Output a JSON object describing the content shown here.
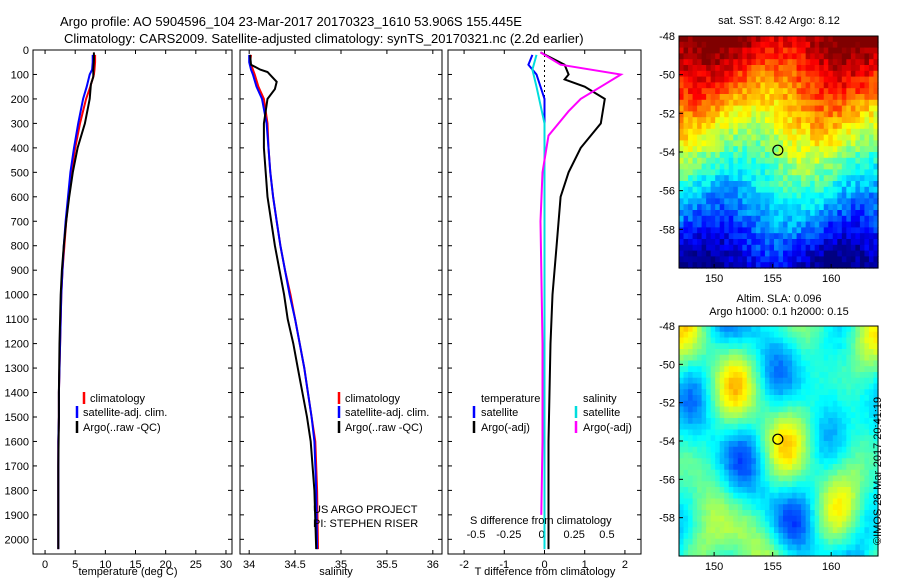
{
  "title_line1": "Argo profile: AO 5904596_104 23-Mar-2017 20170323_1610 53.906S 155.445E",
  "title_line2": "Climatology: CARS2009. Satellite-adjusted climatology: synTS_20170321.nc (2.2d earlier)",
  "sst_title": "sat. SST: 8.42 Argo: 8.12",
  "sla_title1": "Altim. SLA: 0.096",
  "sla_title2": "Argo h1000: 0.1 h2000: 0.15",
  "credit": "©IMOS 28-Mar-2017 20:41:19",
  "project_line1": "US ARGO PROJECT",
  "project_line2": "PI: STEPHEN RISER",
  "colors": {
    "climatology": "#ff0000",
    "satellite": "#0000ff",
    "argo": "#000000",
    "sat_salinity": "#00dddd",
    "argo_salinity": "#ff00ff"
  },
  "chart_data": [
    {
      "type": "line",
      "name": "temperature",
      "xlabel": "temperature (deg C)",
      "ylabel": "",
      "xlim": [
        -2,
        31
      ],
      "ylim": [
        2060,
        0
      ],
      "xticks": [
        0,
        5,
        10,
        15,
        20,
        25,
        30
      ],
      "yticks": [
        0,
        100,
        200,
        300,
        400,
        500,
        600,
        700,
        800,
        900,
        1000,
        1100,
        1200,
        1300,
        1400,
        1500,
        1600,
        1700,
        1800,
        1900,
        2000
      ],
      "legend": [
        "climatology",
        "satellite-adj. clim.",
        "Argo(..raw -QC)"
      ],
      "series": [
        {
          "name": "climatology",
          "color": "#ff0000",
          "x": [
            8.3,
            8.3,
            8.2,
            8.1,
            7.5,
            6.8,
            5.8,
            5.0,
            4.4,
            3.9,
            3.5,
            3.2,
            2.9,
            2.7,
            2.6,
            2.5,
            2.4,
            2.3,
            2.3,
            2.2,
            2.2,
            2.2
          ],
          "y": [
            20,
            50,
            80,
            100,
            150,
            200,
            300,
            400,
            500,
            600,
            700,
            800,
            900,
            1000,
            1100,
            1200,
            1300,
            1400,
            1500,
            1600,
            1800,
            2040
          ]
        },
        {
          "name": "satellite-adj. clim.",
          "color": "#0000ff",
          "x": [
            7.9,
            7.9,
            7.8,
            7.4,
            6.9,
            6.3,
            5.5,
            4.8,
            4.2,
            3.8,
            3.4,
            3.1,
            2.9,
            2.7,
            2.6,
            2.5,
            2.4,
            2.3,
            2.3,
            2.2,
            2.2,
            2.2
          ],
          "y": [
            20,
            50,
            80,
            100,
            150,
            200,
            300,
            400,
            500,
            600,
            700,
            800,
            900,
            1000,
            1100,
            1200,
            1300,
            1400,
            1500,
            1600,
            1800,
            2040
          ]
        },
        {
          "name": "Argo(..raw -QC)",
          "color": "#000000",
          "x": [
            8.1,
            8.1,
            8.0,
            8.0,
            7.6,
            7.4,
            6.6,
            5.4,
            4.6,
            4.0,
            3.5,
            3.1,
            2.8,
            2.6,
            2.5,
            2.4,
            2.3,
            2.3,
            2.2,
            2.2,
            2.2
          ],
          "y": [
            10,
            40,
            80,
            110,
            140,
            200,
            300,
            400,
            500,
            600,
            700,
            800,
            900,
            1000,
            1100,
            1200,
            1400,
            1500,
            1700,
            1900,
            2040
          ]
        }
      ]
    },
    {
      "type": "line",
      "name": "salinity",
      "xlabel": "salinity",
      "xlim": [
        33.9,
        36.1
      ],
      "xticks": [
        34,
        34.5,
        35,
        35.5,
        36
      ],
      "legend": [
        "climatology",
        "satellite-adj. clim.",
        "Argo(..raw -QC)"
      ],
      "series": [
        {
          "name": "climatology",
          "color": "#ff0000",
          "x": [
            34.02,
            34.01,
            34.04,
            34.06,
            34.1,
            34.16,
            34.2,
            34.21,
            34.23,
            34.26,
            34.3,
            34.34,
            34.39,
            34.45,
            34.5,
            34.55,
            34.6,
            34.64,
            34.68,
            34.72,
            34.74,
            34.75
          ],
          "y": [
            20,
            50,
            80,
            100,
            150,
            200,
            300,
            400,
            500,
            600,
            700,
            800,
            900,
            1000,
            1100,
            1200,
            1300,
            1400,
            1500,
            1600,
            1800,
            2040
          ]
        },
        {
          "name": "satellite-adj. clim.",
          "color": "#0000ff",
          "x": [
            34.0,
            34.0,
            34.02,
            34.04,
            34.08,
            34.14,
            34.19,
            34.21,
            34.23,
            34.26,
            34.3,
            34.34,
            34.39,
            34.44,
            34.5,
            34.55,
            34.6,
            34.64,
            34.68,
            34.71,
            34.73,
            34.74
          ],
          "y": [
            20,
            50,
            80,
            100,
            150,
            200,
            300,
            400,
            500,
            600,
            700,
            800,
            900,
            1000,
            1100,
            1200,
            1300,
            1400,
            1500,
            1600,
            1800,
            2040
          ]
        },
        {
          "name": "Argo(..raw -QC)",
          "color": "#000000",
          "x": [
            34.01,
            34.02,
            34.12,
            34.2,
            34.25,
            34.3,
            34.28,
            34.2,
            34.16,
            34.16,
            34.18,
            34.2,
            34.24,
            34.28,
            34.33,
            34.38,
            34.42,
            34.48,
            34.53,
            34.58,
            34.63,
            34.67,
            34.71,
            34.73
          ],
          "y": [
            20,
            60,
            80,
            90,
            110,
            130,
            160,
            200,
            300,
            400,
            500,
            600,
            700,
            800,
            900,
            1000,
            1100,
            1200,
            1300,
            1400,
            1500,
            1600,
            1800,
            2040
          ]
        }
      ]
    },
    {
      "type": "line",
      "name": "differences",
      "xlabel": "T difference from climatology",
      "xlabel_top": "S difference from climatology",
      "xlim": [
        -2.4,
        2.4
      ],
      "xticks": [
        -2,
        -1,
        0,
        1,
        2
      ],
      "top_ticks": [
        -0.5,
        -0.25,
        0,
        0.25,
        0.5
      ],
      "legend_titles": [
        "temperature",
        "salinity"
      ],
      "legend_temperature": [
        "satellite",
        "Argo(-adj)"
      ],
      "legend_salinity": [
        "satellite",
        "Argo(-adj)"
      ],
      "series": [
        {
          "name": "T satellite",
          "color": "#0000ff",
          "x": [
            -0.3,
            -0.4,
            -0.2,
            0.0,
            0.0,
            0.0,
            0.0
          ],
          "y": [
            20,
            60,
            100,
            200,
            500,
            1000,
            2040
          ]
        },
        {
          "name": "T Argo(-adj)",
          "color": "#000000",
          "x": [
            -0.1,
            0.5,
            0.6,
            0.5,
            1.0,
            1.5,
            1.4,
            0.9,
            0.6,
            0.4,
            0.3,
            0.2,
            0.15,
            0.1,
            0.1
          ],
          "y": [
            10,
            60,
            100,
            120,
            150,
            200,
            300,
            400,
            500,
            600,
            800,
            1000,
            1200,
            1600,
            2040
          ]
        },
        {
          "name": "S satellite",
          "color": "#00dddd",
          "x": [
            -0.2,
            -0.3,
            -0.2,
            0.0,
            0.0,
            0.0
          ],
          "y": [
            20,
            80,
            150,
            300,
            1000,
            2040
          ]
        },
        {
          "name": "S Argo(-adj)",
          "color": "#ff00ff",
          "x": [
            -0.1,
            0.4,
            1.9,
            1.5,
            0.9,
            0.6,
            0.1,
            -0.05,
            -0.1,
            -0.08,
            -0.05,
            -0.05,
            -0.08
          ],
          "y": [
            10,
            60,
            100,
            140,
            200,
            250,
            350,
            500,
            700,
            900,
            1200,
            1600,
            1900
          ]
        }
      ]
    },
    {
      "type": "heatmap",
      "name": "sat-sst-map",
      "title": "sat. SST: 8.42 Argo: 8.12",
      "xlim": [
        147,
        164
      ],
      "ylim": [
        -60,
        -48
      ],
      "xticks": [
        150,
        155,
        160
      ],
      "yticks": [
        -48,
        -50,
        -52,
        -54,
        -56,
        -58
      ],
      "marker": {
        "lon": 155.445,
        "lat": -53.906
      }
    },
    {
      "type": "heatmap",
      "name": "altim-sla-map",
      "title": "Altim. SLA: 0.096",
      "xlim": [
        147,
        164
      ],
      "ylim": [
        -60,
        -48
      ],
      "xticks": [
        150,
        155,
        160
      ],
      "yticks": [
        -48,
        -50,
        -52,
        -54,
        -56,
        -58
      ],
      "marker": {
        "lon": 155.445,
        "lat": -53.906
      }
    }
  ]
}
